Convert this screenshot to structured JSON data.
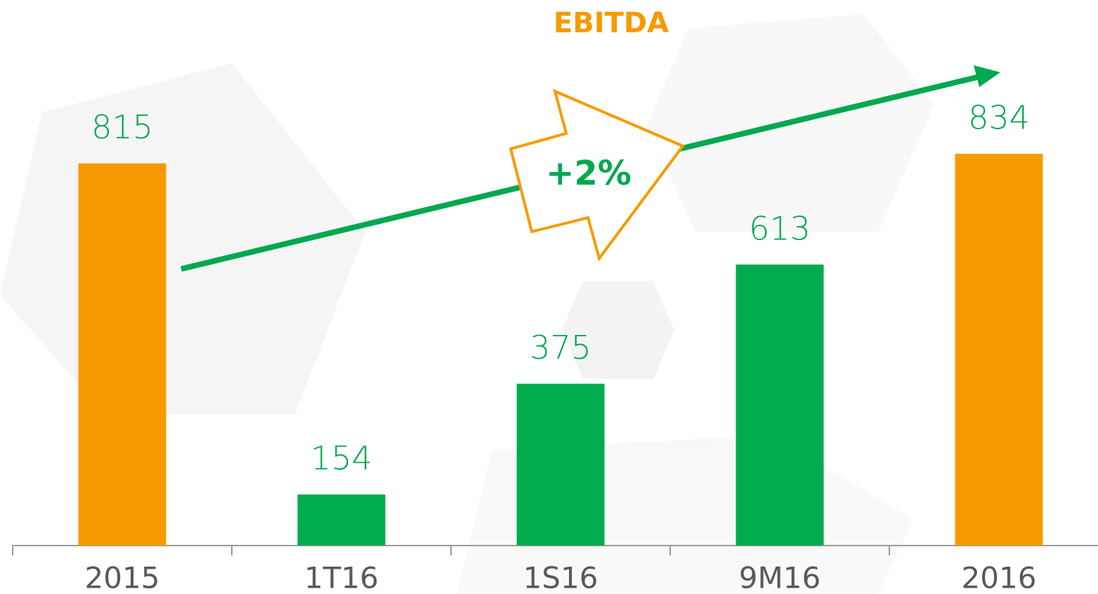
{
  "chart_data": {
    "type": "bar",
    "title": "EBITDA",
    "categories": [
      "2015",
      "1T16",
      "1S16",
      "9M16",
      "2016"
    ],
    "values": [
      815,
      154,
      375,
      613,
      834
    ],
    "colors": [
      "#f79a00",
      "#00ac4e",
      "#00ac4e",
      "#00ac4e",
      "#f79a00"
    ],
    "ylim": [
      52,
      900
    ],
    "annotation": "+2%"
  }
}
